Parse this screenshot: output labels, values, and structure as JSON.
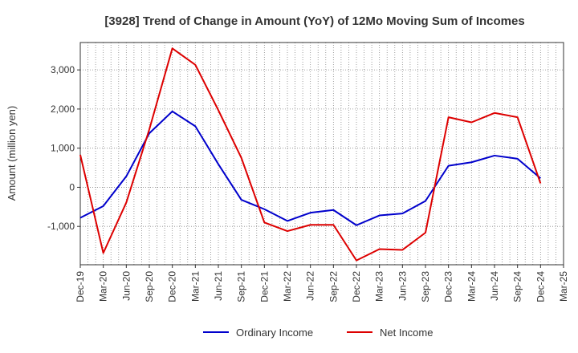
{
  "chart_data": {
    "type": "line",
    "title": "[3928]  Trend of Change in Amount (YoY) of 12Mo Moving Sum of Incomes",
    "ylabel": "Amount (million yen)",
    "xlabel": "",
    "x": [
      "Dec-19",
      "Mar-20",
      "Jun-20",
      "Sep-20",
      "Dec-20",
      "Mar-21",
      "Jun-21",
      "Sep-21",
      "Dec-21",
      "Mar-22",
      "Jun-22",
      "Sep-22",
      "Dec-22",
      "Mar-23",
      "Jun-23",
      "Sep-23",
      "Dec-23",
      "Mar-24",
      "Jun-24",
      "Sep-24",
      "Dec-24",
      "Mar-25"
    ],
    "yticks": [
      -1000,
      0,
      1000,
      2000,
      3000
    ],
    "ytick_labels": [
      "-1,000",
      "0",
      "1,000",
      "2,000",
      "3,000"
    ],
    "ylim": [
      -1980,
      3700
    ],
    "grid": true,
    "legend_position": "bottom",
    "series": [
      {
        "name": "Ordinary Income",
        "color": "#0000cc",
        "values": [
          -780,
          -480,
          280,
          1380,
          1940,
          1560,
          590,
          -320,
          -560,
          -860,
          -650,
          -580,
          -970,
          -720,
          -670,
          -350,
          550,
          640,
          810,
          730,
          230,
          null
        ]
      },
      {
        "name": "Net Income",
        "color": "#dd0000",
        "values": [
          830,
          -1680,
          -390,
          1480,
          3550,
          3130,
          1970,
          750,
          -900,
          -1120,
          -960,
          -960,
          -1870,
          -1580,
          -1600,
          -1160,
          1790,
          1660,
          1900,
          1790,
          100,
          null
        ]
      }
    ]
  }
}
